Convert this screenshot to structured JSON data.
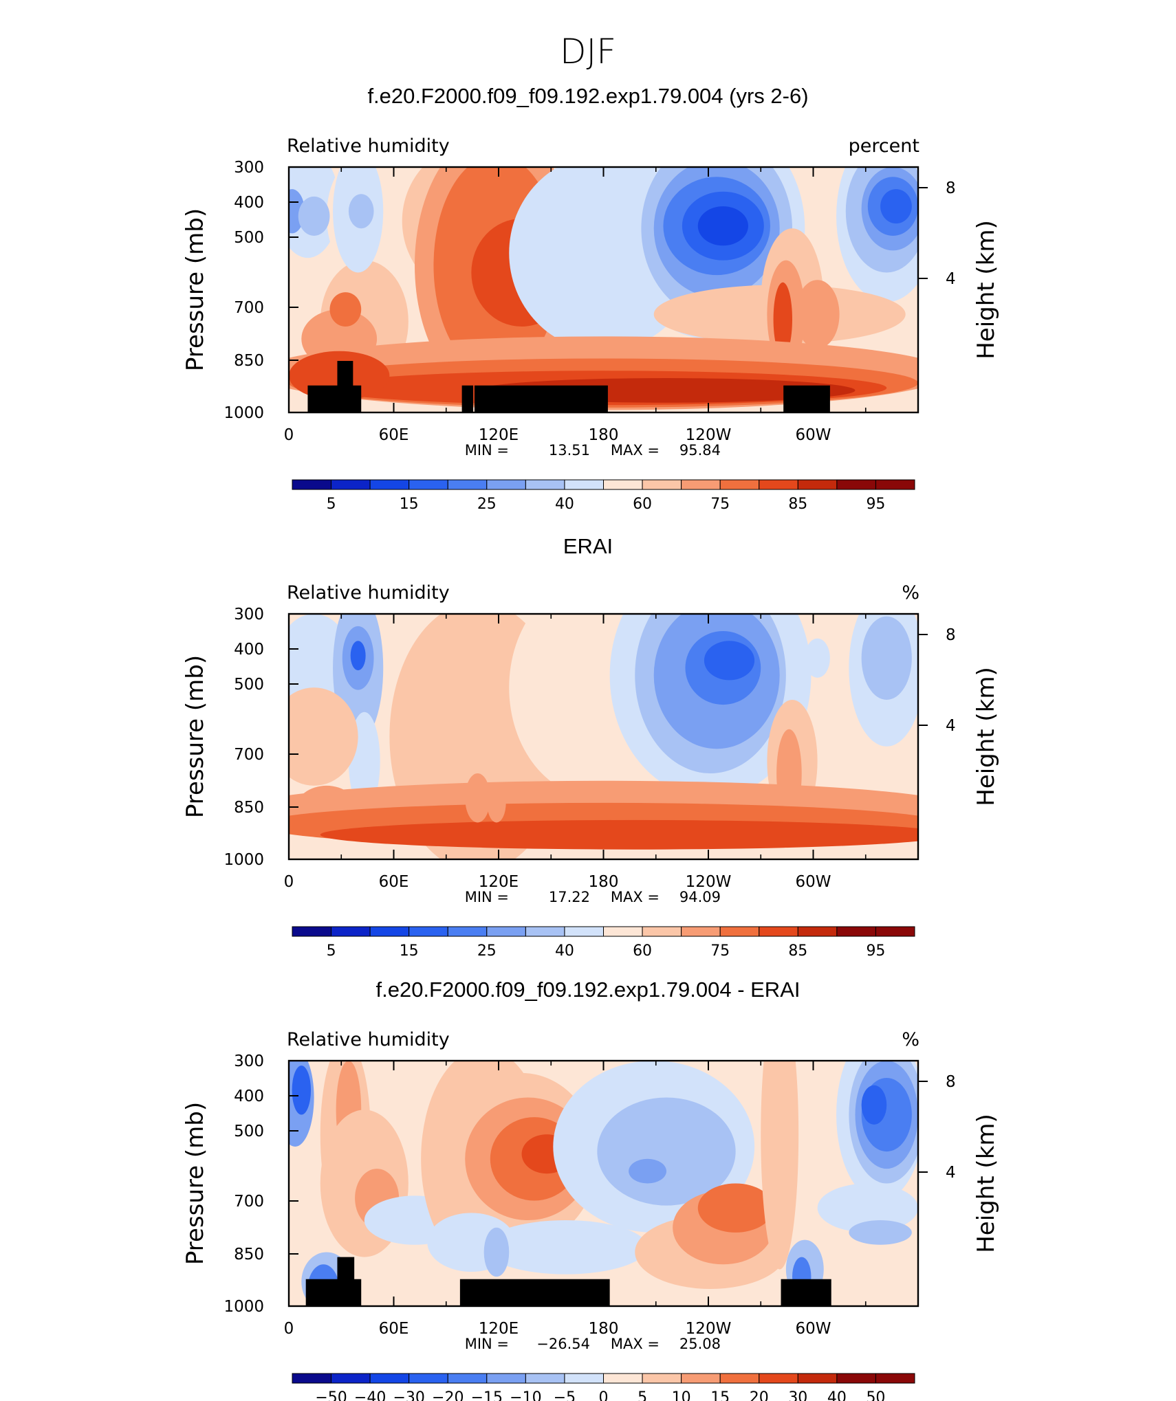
{
  "page_title": "DJF",
  "chart_data": [
    {
      "type": "heatmap",
      "title": "f.e20.F2000.f09_f09.192.exp1.79.004 (yrs 2-6)",
      "left_label": "Relative humidity",
      "right_label": "percent",
      "ylabel": "Pressure (mb)",
      "ylabel_right": "Height (km)",
      "y_ticks": [
        "300",
        "400",
        "500",
        "700",
        "850",
        "1000"
      ],
      "y_ticks_right": [
        "8",
        "4"
      ],
      "x_ticks": [
        "0",
        "60E",
        "120E",
        "180",
        "120W",
        "60W"
      ],
      "min_label": "MIN =",
      "min_value": "13.51",
      "max_label": "MAX =",
      "max_value": "95.84",
      "colorbar_labels": [
        "5",
        "15",
        "25",
        "40",
        "60",
        "75",
        "85",
        "95"
      ]
    },
    {
      "type": "heatmap",
      "title": "ERAI",
      "left_label": "Relative humidity",
      "right_label": "%",
      "ylabel": "Pressure (mb)",
      "ylabel_right": "Height (km)",
      "y_ticks": [
        "300",
        "400",
        "500",
        "700",
        "850",
        "1000"
      ],
      "y_ticks_right": [
        "8",
        "4"
      ],
      "x_ticks": [
        "0",
        "60E",
        "120E",
        "180",
        "120W",
        "60W"
      ],
      "min_label": "MIN =",
      "min_value": "17.22",
      "max_label": "MAX =",
      "max_value": "94.09",
      "colorbar_labels": [
        "5",
        "15",
        "25",
        "40",
        "60",
        "75",
        "85",
        "95"
      ]
    },
    {
      "type": "heatmap",
      "title": "f.e20.F2000.f09_f09.192.exp1.79.004 - ERAI",
      "left_label": "Relative humidity",
      "right_label": "%",
      "ylabel": "Pressure (mb)",
      "ylabel_right": "Height (km)",
      "y_ticks": [
        "300",
        "400",
        "500",
        "700",
        "850",
        "1000"
      ],
      "y_ticks_right": [
        "8",
        "4"
      ],
      "x_ticks": [
        "0",
        "60E",
        "120E",
        "180",
        "120W",
        "60W"
      ],
      "min_label": "MIN =",
      "min_value": "−26.54",
      "max_label": "MAX =",
      "max_value": "25.08",
      "colorbar_labels": [
        "−50",
        "−40",
        "−30",
        "−20",
        "−15",
        "−10",
        "−5",
        "0",
        "5",
        "10",
        "15",
        "20",
        "30",
        "40",
        "50"
      ]
    }
  ],
  "palette": [
    "#0a0a8c",
    "#0c24c8",
    "#1446e6",
    "#2a62f0",
    "#4a7ef2",
    "#7aa0f2",
    "#a8c2f4",
    "#d2e2fa",
    "#fde6d6",
    "#fbc6a8",
    "#f79c74",
    "#f0703e",
    "#e4481c",
    "#c42a0c",
    "#8a0808"
  ]
}
